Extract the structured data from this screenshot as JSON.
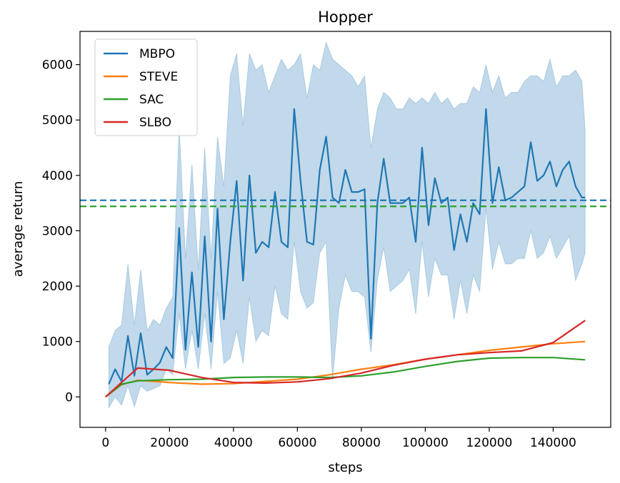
{
  "chart_data": {
    "type": "line",
    "title": "Hopper",
    "xlabel": "steps",
    "ylabel": "average return",
    "xlim": [
      -8000,
      158000
    ],
    "ylim": [
      -550,
      6600
    ],
    "xticks": [
      0,
      20000,
      40000,
      60000,
      80000,
      100000,
      120000,
      140000
    ],
    "xtick_labels": [
      "0",
      "20000",
      "40000",
      "60000",
      "80000",
      "100000",
      "120000",
      "140000"
    ],
    "yticks": [
      0,
      1000,
      2000,
      3000,
      4000,
      5000,
      6000
    ],
    "ytick_labels": [
      "0",
      "1000",
      "2000",
      "3000",
      "4000",
      "5000",
      "6000"
    ],
    "grid": false,
    "legend_position": "top-left",
    "series": [
      {
        "name": "MBPO",
        "color": "#1f77b4",
        "shaded_band": true,
        "x": [
          1000,
          3000,
          5000,
          7000,
          9000,
          11000,
          13000,
          15000,
          17000,
          19000,
          21000,
          23000,
          25000,
          27000,
          29000,
          31000,
          33000,
          35000,
          37000,
          39000,
          41000,
          43000,
          45000,
          47000,
          49000,
          51000,
          53000,
          55000,
          57000,
          59000,
          61000,
          63000,
          65000,
          67000,
          69000,
          71000,
          73000,
          75000,
          77000,
          79000,
          81000,
          83000,
          85000,
          87000,
          89000,
          91000,
          93000,
          95000,
          97000,
          99000,
          101000,
          103000,
          105000,
          107000,
          109000,
          111000,
          113000,
          115000,
          117000,
          119000,
          121000,
          123000,
          125000,
          127000,
          129000,
          131000,
          133000,
          135000,
          137000,
          139000,
          141000,
          143000,
          145000,
          147000,
          149000,
          150000
        ],
        "y": [
          230,
          500,
          280,
          1100,
          380,
          1150,
          400,
          500,
          620,
          900,
          700,
          3050,
          850,
          2250,
          900,
          2900,
          1000,
          3400,
          1400,
          2800,
          3900,
          2100,
          4000,
          2600,
          2800,
          2700,
          3700,
          2800,
          2700,
          5200,
          3900,
          2800,
          2750,
          4100,
          4700,
          3600,
          3500,
          4100,
          3700,
          3700,
          3750,
          1050,
          3500,
          4300,
          3500,
          3500,
          3500,
          3600,
          2800,
          4500,
          3100,
          3950,
          3500,
          3600,
          2650,
          3300,
          2800,
          3500,
          3300,
          5200,
          3500,
          4150,
          3550,
          3600,
          3700,
          3800,
          4600,
          3900,
          4000,
          4250,
          3800,
          4100,
          4250,
          3800,
          3600,
          3600
        ],
        "upper": [
          900,
          1200,
          1300,
          2400,
          1300,
          2300,
          1200,
          1400,
          1300,
          1600,
          1800,
          4900,
          2500,
          4200,
          2300,
          4500,
          2500,
          4700,
          3800,
          5800,
          6200,
          4900,
          6200,
          5900,
          6000,
          5500,
          5800,
          6100,
          5900,
          6000,
          6200,
          5400,
          6000,
          5900,
          6400,
          6100,
          6000,
          5900,
          5800,
          5600,
          5800,
          4500,
          5200,
          5500,
          5400,
          5200,
          5200,
          5400,
          5300,
          5400,
          5300,
          5500,
          5300,
          5400,
          5200,
          5300,
          5300,
          5600,
          5500,
          6000,
          5500,
          5800,
          5400,
          5500,
          5500,
          5700,
          5800,
          5800,
          5700,
          6100,
          5600,
          5800,
          5800,
          5900,
          5700,
          4800
        ],
        "lower": [
          -200,
          0,
          -150,
          200,
          -180,
          200,
          100,
          150,
          200,
          500,
          400,
          1500,
          500,
          1200,
          500,
          1500,
          500,
          1900,
          600,
          700,
          1200,
          600,
          1800,
          1000,
          1200,
          1100,
          2000,
          1500,
          1400,
          2800,
          1900,
          1600,
          1700,
          2600,
          2800,
          300,
          1600,
          2200,
          1900,
          1900,
          1800,
          800,
          2100,
          2700,
          1900,
          2000,
          2100,
          2300,
          1500,
          2800,
          1800,
          2500,
          2200,
          2200,
          1400,
          2100,
          1500,
          2200,
          1900,
          3400,
          2300,
          2800,
          2400,
          2400,
          2500,
          2500,
          3000,
          2500,
          2600,
          2900,
          2500,
          2700,
          2900,
          2100,
          2400,
          2600
        ]
      },
      {
        "name": "STEVE",
        "color": "#ff7f0e",
        "x": [
          0,
          5000,
          10000,
          20000,
          30000,
          40000,
          50000,
          60000,
          70000,
          80000,
          90000,
          100000,
          110000,
          120000,
          130000,
          140000,
          150000
        ],
        "y": [
          0,
          220,
          300,
          260,
          230,
          240,
          280,
          320,
          400,
          500,
          580,
          680,
          760,
          840,
          900,
          960,
          1000
        ]
      },
      {
        "name": "SAC",
        "color": "#2ca02c",
        "x": [
          0,
          5000,
          10000,
          20000,
          30000,
          40000,
          50000,
          60000,
          70000,
          80000,
          90000,
          100000,
          110000,
          120000,
          130000,
          140000,
          150000
        ],
        "y": [
          0,
          230,
          290,
          310,
          320,
          350,
          360,
          360,
          350,
          380,
          450,
          550,
          640,
          700,
          710,
          710,
          670
        ]
      },
      {
        "name": "SLBO",
        "color": "#d62728",
        "x": [
          0,
          5000,
          10000,
          20000,
          30000,
          40000,
          50000,
          60000,
          70000,
          80000,
          90000,
          100000,
          110000,
          120000,
          130000,
          140000,
          150000
        ],
        "y": [
          0,
          260,
          520,
          480,
          350,
          260,
          250,
          270,
          330,
          430,
          570,
          680,
          760,
          800,
          830,
          980,
          1380
        ]
      }
    ],
    "hlines": [
      {
        "y": 3550,
        "color": "#1f77b4",
        "style": "dashed"
      },
      {
        "y": 3440,
        "color": "#2ca02c",
        "style": "dashed"
      }
    ]
  }
}
